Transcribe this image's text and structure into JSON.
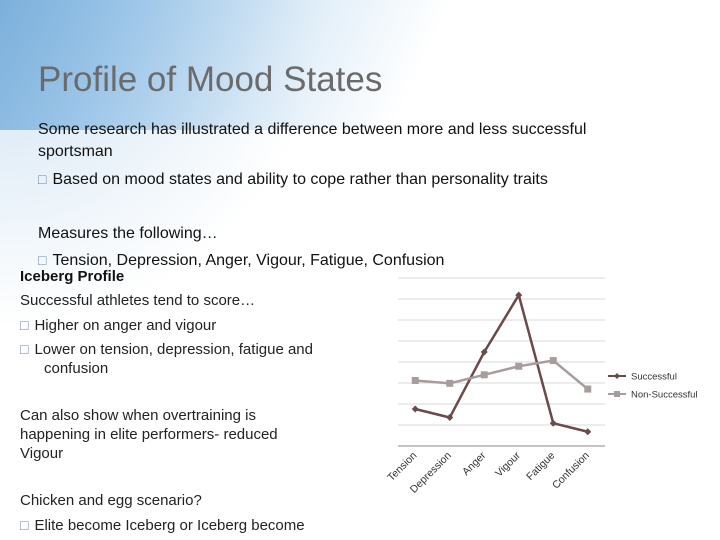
{
  "slide": {
    "title": "Profile of Mood States",
    "intro_line1": "Some research has illustrated a difference between more and less successful",
    "intro_line2": "sportsman",
    "bullet1": "Based on mood states and ability to cope rather than personality traits",
    "measures": "Measures the following…",
    "bullet2": "Tension, Depression, Anger, Vigour, Fatigue, Confusion",
    "iceberg_heading": "Iceberg Profile",
    "successful_text": "Successful athletes tend to score…",
    "bullet3": "Higher on anger and vigour",
    "bullet4_line1": "Lower on tension, depression, fatigue and",
    "bullet4_line2": "confusion",
    "overtraining_line1": "Can also show when overtraining is",
    "overtraining_line2": "happening in elite performers- reduced",
    "overtraining_line3": "Vigour",
    "chicken_egg": "Chicken and egg scenario?",
    "bullet5": "Elite become Iceberg or Iceberg become",
    "bullet_glyph": "□"
  },
  "chart_data": {
    "type": "line",
    "categories": [
      "Tension",
      "Depression",
      "Anger",
      "Vigour",
      "Fatigue",
      "Confusion"
    ],
    "series": [
      {
        "name": "Successful",
        "values": [
          40,
          37,
          60,
          80,
          35,
          32
        ],
        "color": "#6b4a4a",
        "marker": "diamond"
      },
      {
        "name": "Non-Successful",
        "values": [
          50,
          49,
          52,
          55,
          57,
          47
        ],
        "color": "#a89c9c",
        "marker": "square"
      }
    ],
    "ylim": [
      27,
      86
    ],
    "grid": true,
    "legend": "right"
  }
}
